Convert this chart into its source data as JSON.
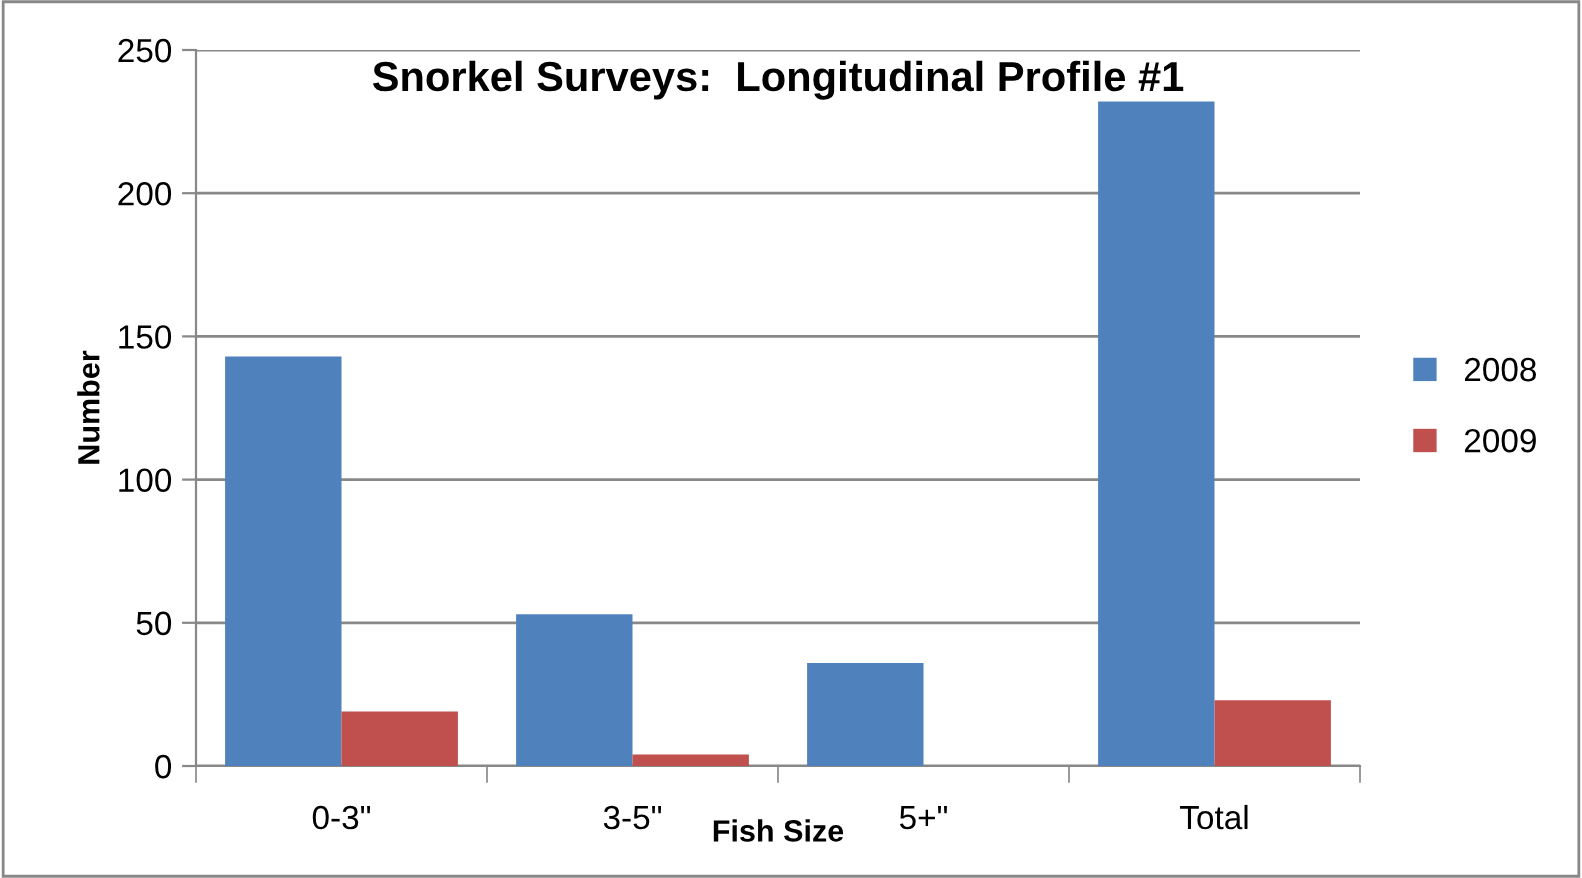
{
  "chart_data": {
    "type": "bar",
    "title": "Snorkel Surveys:  Longitudinal Profile #1",
    "xlabel": "Fish Size",
    "ylabel": "Number",
    "categories": [
      "0-3\"",
      "3-5\"",
      "5+\"",
      "Total"
    ],
    "series": [
      {
        "name": "2008",
        "color": "#4f81bd",
        "values": [
          143,
          53,
          36,
          232
        ]
      },
      {
        "name": "2009",
        "color": "#c0504d",
        "values": [
          19,
          4,
          0,
          23
        ]
      }
    ],
    "ylim": [
      0,
      250
    ],
    "yticks": [
      0,
      50,
      100,
      150,
      200,
      250
    ],
    "grid": "y",
    "legend": "right"
  }
}
